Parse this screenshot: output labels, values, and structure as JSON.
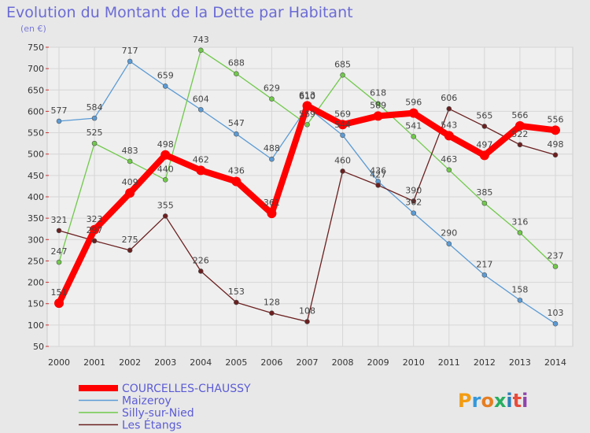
{
  "chart_data": {
    "type": "line",
    "title": "Evolution du Montant de la Dette par Habitant",
    "subtitle": "(en €)",
    "x": [
      "2000",
      "2001",
      "2002",
      "2003",
      "2004",
      "2005",
      "2006",
      "2007",
      "2008",
      "2009",
      "2010",
      "2011",
      "2012",
      "2013",
      "2014"
    ],
    "ylim": [
      50,
      750
    ],
    "yticks": [
      50,
      100,
      150,
      200,
      250,
      300,
      350,
      400,
      450,
      500,
      550,
      600,
      650,
      700,
      750
    ],
    "grid": true,
    "legend_position": "bottom-left",
    "series": [
      {
        "name": "COURCELLES-CHAUSSY",
        "color": "#ff0000",
        "values": [
          151,
          323,
          409,
          498,
          462,
          436,
          361,
          613,
          569,
          589,
          596,
          543,
          497,
          566,
          556
        ]
      },
      {
        "name": "Maizeroy",
        "color": "#5b9bd5",
        "values": [
          577,
          584,
          717,
          659,
          604,
          547,
          488,
          610,
          544,
          436,
          362,
          290,
          217,
          158,
          103
        ]
      },
      {
        "name": "Silly-sur-Nied",
        "color": "#70c94a",
        "values": [
          247,
          525,
          483,
          440,
          743,
          688,
          629,
          569,
          685,
          618,
          541,
          463,
          385,
          316,
          237
        ]
      },
      {
        "name": "Les Étangs",
        "color": "#6b1f1f",
        "values": [
          321,
          297,
          275,
          355,
          226,
          153,
          128,
          108,
          460,
          427,
          390,
          606,
          565,
          522,
          498
        ]
      }
    ]
  },
  "labels": {
    "courcelles": [
      "151",
      "323",
      "409",
      "498",
      "462",
      "436",
      "361",
      "613",
      "569",
      "589",
      "596",
      "543",
      "497",
      "566",
      "556"
    ],
    "maizeroy": [
      "577",
      "584",
      "717",
      "659",
      "604",
      "547",
      "488",
      "610",
      "544",
      "436",
      "362",
      "290",
      "217",
      "158",
      "103"
    ],
    "silly": [
      "247",
      "525",
      "483",
      "440",
      "743",
      "688",
      "629",
      "569",
      "685",
      "618",
      "541",
      "463",
      "385",
      "316",
      "237"
    ],
    "etangs": [
      "321",
      "297",
      "275",
      "355",
      "226",
      "153",
      "128",
      "108",
      "460",
      "427",
      "390",
      "606",
      "565",
      "522",
      "498"
    ]
  },
  "logo": {
    "text": "Proxiti"
  }
}
